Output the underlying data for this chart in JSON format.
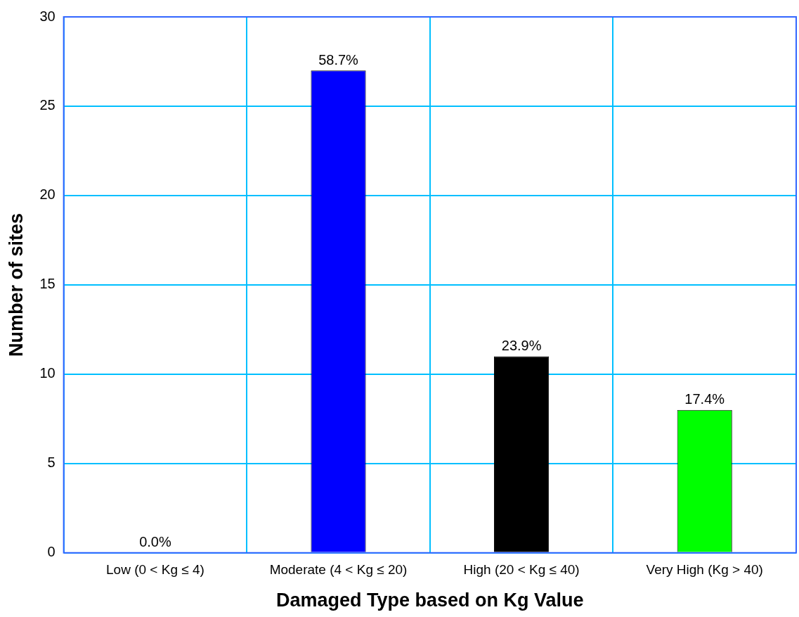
{
  "chart_data": {
    "type": "bar",
    "xlabel": "Damaged Type based on Kg Value",
    "ylabel": "Number of sites",
    "categories": [
      "Low (0 < Kg ≤ 4)",
      "Moderate (4 < Kg ≤ 20)",
      "High (20 < Kg ≤ 40)",
      "Very High (Kg > 40)"
    ],
    "values": [
      0,
      27,
      11,
      8
    ],
    "colors": [
      "#0000ff",
      "#0000ff",
      "#000000",
      "#00ff00"
    ],
    "annotations": [
      {
        "text": "0.0%",
        "x": "Low (0 < Kg ≤ 4)",
        "y": 0
      },
      {
        "text": "58.7%",
        "x": "Moderate (4 < Kg ≤ 20)",
        "y": 27
      },
      {
        "text": "23.9%",
        "x": "High (20 < Kg ≤ 40)",
        "y": 11
      },
      {
        "text": "17.4%",
        "x": "Very High (Kg > 40)",
        "y": 8
      }
    ],
    "ylim": [
      0,
      30
    ],
    "yticks": [
      0,
      5,
      10,
      15,
      20,
      25,
      30
    ],
    "grid": true,
    "legend": false
  }
}
